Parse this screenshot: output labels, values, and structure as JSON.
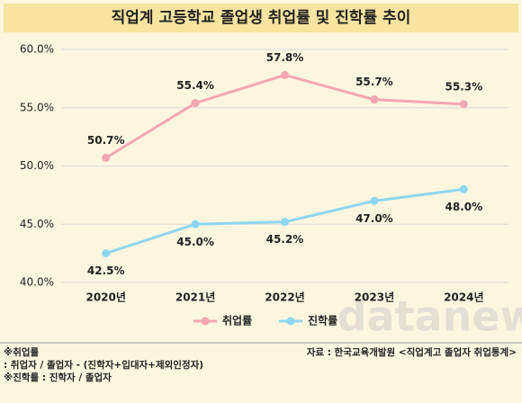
{
  "chart_data": {
    "type": "line",
    "title": "직업계 고등학교 졸업생 취업률 및 진학률 추이",
    "categories": [
      "2020년",
      "2021년",
      "2022년",
      "2023년",
      "2024년"
    ],
    "series": [
      {
        "name": "취업률",
        "color": "#f4a6b0",
        "values": [
          50.7,
          55.4,
          57.8,
          55.7,
          55.3
        ],
        "value_labels": [
          "50.7%",
          "55.4%",
          "57.8%",
          "55.7%",
          "55.3%"
        ]
      },
      {
        "name": "진학률",
        "color": "#8dd6f2",
        "values": [
          42.5,
          45.0,
          45.2,
          47.0,
          48.0
        ],
        "value_labels": [
          "42.5%",
          "45.0%",
          "45.2%",
          "47.0%",
          "48.0%"
        ]
      }
    ],
    "ylim": [
      40,
      60
    ],
    "yticks": [
      {
        "value": 40,
        "label": "40.0%"
      },
      {
        "value": 45,
        "label": "45.0%"
      },
      {
        "value": 50,
        "label": "50.0%"
      },
      {
        "value": 55,
        "label": "55.0%"
      },
      {
        "value": 60,
        "label": "60.0%"
      }
    ],
    "grid": true,
    "legend": "bottom",
    "watermark": "datanews",
    "notes": [
      "※취업률",
      ": 취업자 / 졸업자 - (진학자+입대자+제외인정자)",
      "※진학률 : 진학자 / 졸업자"
    ],
    "source": "자료 : 한국교육개발원 <직업계고 졸업자 취업통계>"
  }
}
